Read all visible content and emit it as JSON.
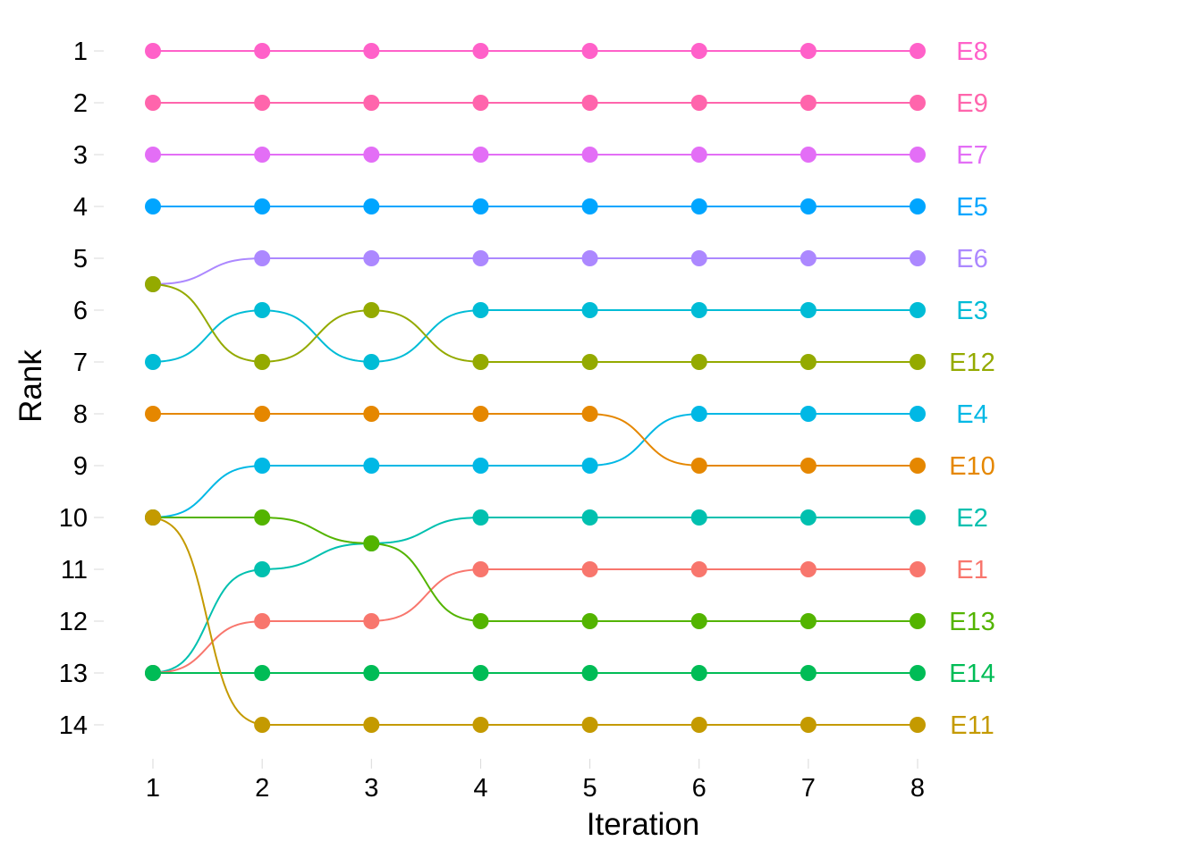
{
  "chart_data": {
    "type": "line",
    "xlabel": "Iteration",
    "ylabel": "Rank",
    "x": [
      1,
      2,
      3,
      4,
      5,
      6,
      7,
      8
    ],
    "xlim": [
      1,
      8
    ],
    "ylim": [
      1,
      14
    ],
    "y_reversed": true,
    "xticks": [
      "1",
      "2",
      "3",
      "4",
      "5",
      "6",
      "7",
      "8"
    ],
    "yticks": [
      "1",
      "2",
      "3",
      "4",
      "5",
      "6",
      "7",
      "8",
      "9",
      "10",
      "11",
      "12",
      "13",
      "14"
    ],
    "grid": false,
    "legend": "labels at line ends (right)",
    "series": [
      {
        "name": "E8",
        "color": "#FF61C9",
        "values": [
          1,
          1,
          1,
          1,
          1,
          1,
          1,
          1
        ]
      },
      {
        "name": "E9",
        "color": "#FF65AC",
        "values": [
          2,
          2,
          2,
          2,
          2,
          2,
          2,
          2
        ]
      },
      {
        "name": "E7",
        "color": "#E36EF6",
        "values": [
          3,
          3,
          3,
          3,
          3,
          3,
          3,
          3
        ]
      },
      {
        "name": "E5",
        "color": "#00A5FF",
        "values": [
          4,
          4,
          4,
          4,
          4,
          4,
          4,
          4
        ]
      },
      {
        "name": "E6",
        "color": "#AC88FF",
        "values": [
          5.5,
          5,
          5,
          5,
          5,
          5,
          5,
          5
        ]
      },
      {
        "name": "E3",
        "color": "#00BCD6",
        "values": [
          7,
          6,
          7,
          6,
          6,
          6,
          6,
          6
        ]
      },
      {
        "name": "E12",
        "color": "#94AA00",
        "values": [
          5.5,
          7,
          6,
          7,
          7,
          7,
          7,
          7
        ]
      },
      {
        "name": "E4",
        "color": "#00B8E5",
        "values": [
          10,
          9,
          9,
          9,
          9,
          8,
          8,
          8
        ]
      },
      {
        "name": "E10",
        "color": "#E58700",
        "values": [
          8,
          8,
          8,
          8,
          8,
          9,
          9,
          9
        ]
      },
      {
        "name": "E2",
        "color": "#00C0AF",
        "values": [
          13,
          11,
          10.5,
          10,
          10,
          10,
          10,
          10
        ]
      },
      {
        "name": "E1",
        "color": "#F8766D",
        "values": [
          13,
          12,
          12,
          11,
          11,
          11,
          11,
          11
        ]
      },
      {
        "name": "E13",
        "color": "#53B400",
        "values": [
          10,
          10,
          10.5,
          12,
          12,
          12,
          12,
          12
        ]
      },
      {
        "name": "E14",
        "color": "#00BC56",
        "values": [
          13,
          13,
          13,
          13,
          13,
          13,
          13,
          13
        ]
      },
      {
        "name": "E11",
        "color": "#C49A00",
        "values": [
          10,
          14,
          14,
          14,
          14,
          14,
          14,
          14
        ]
      }
    ]
  }
}
